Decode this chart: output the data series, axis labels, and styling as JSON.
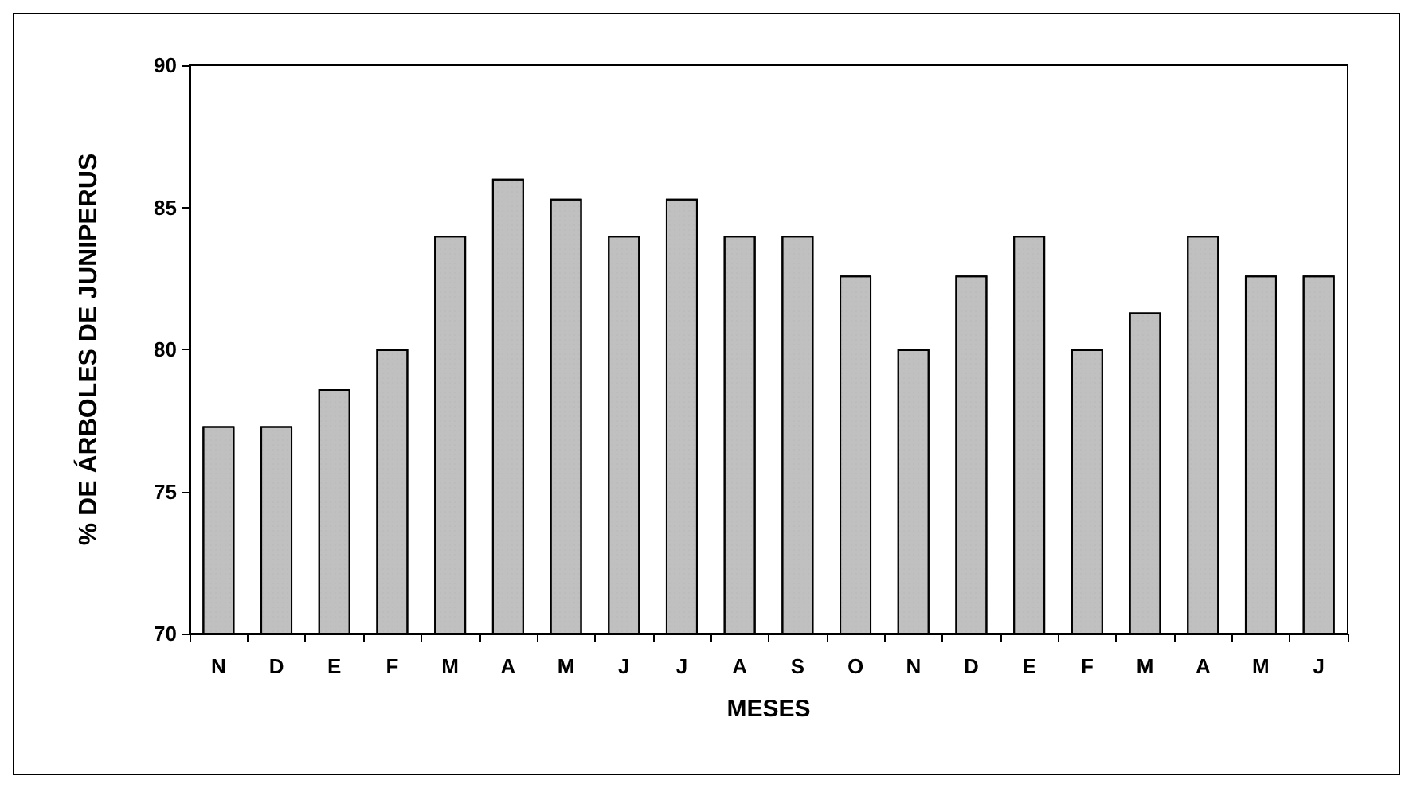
{
  "chart_data": {
    "type": "bar",
    "xlabel": "MESES",
    "ylabel": "% DE ÁRBOLES DE JUNIPERUS",
    "categories": [
      "N",
      "D",
      "E",
      "F",
      "M",
      "A",
      "M",
      "J",
      "J",
      "A",
      "S",
      "O",
      "N",
      "D",
      "E",
      "F",
      "M",
      "A",
      "M",
      "J"
    ],
    "values": [
      77.3,
      77.3,
      78.6,
      80,
      84,
      86,
      85.3,
      84,
      85.3,
      84,
      84,
      82.6,
      80,
      82.6,
      84,
      80,
      81.3,
      84,
      82.6,
      82.6
    ],
    "color": "#c0c0c0",
    "ylim": [
      70,
      90
    ],
    "yticks": [
      70,
      75,
      80,
      85,
      90
    ],
    "grid": false
  }
}
